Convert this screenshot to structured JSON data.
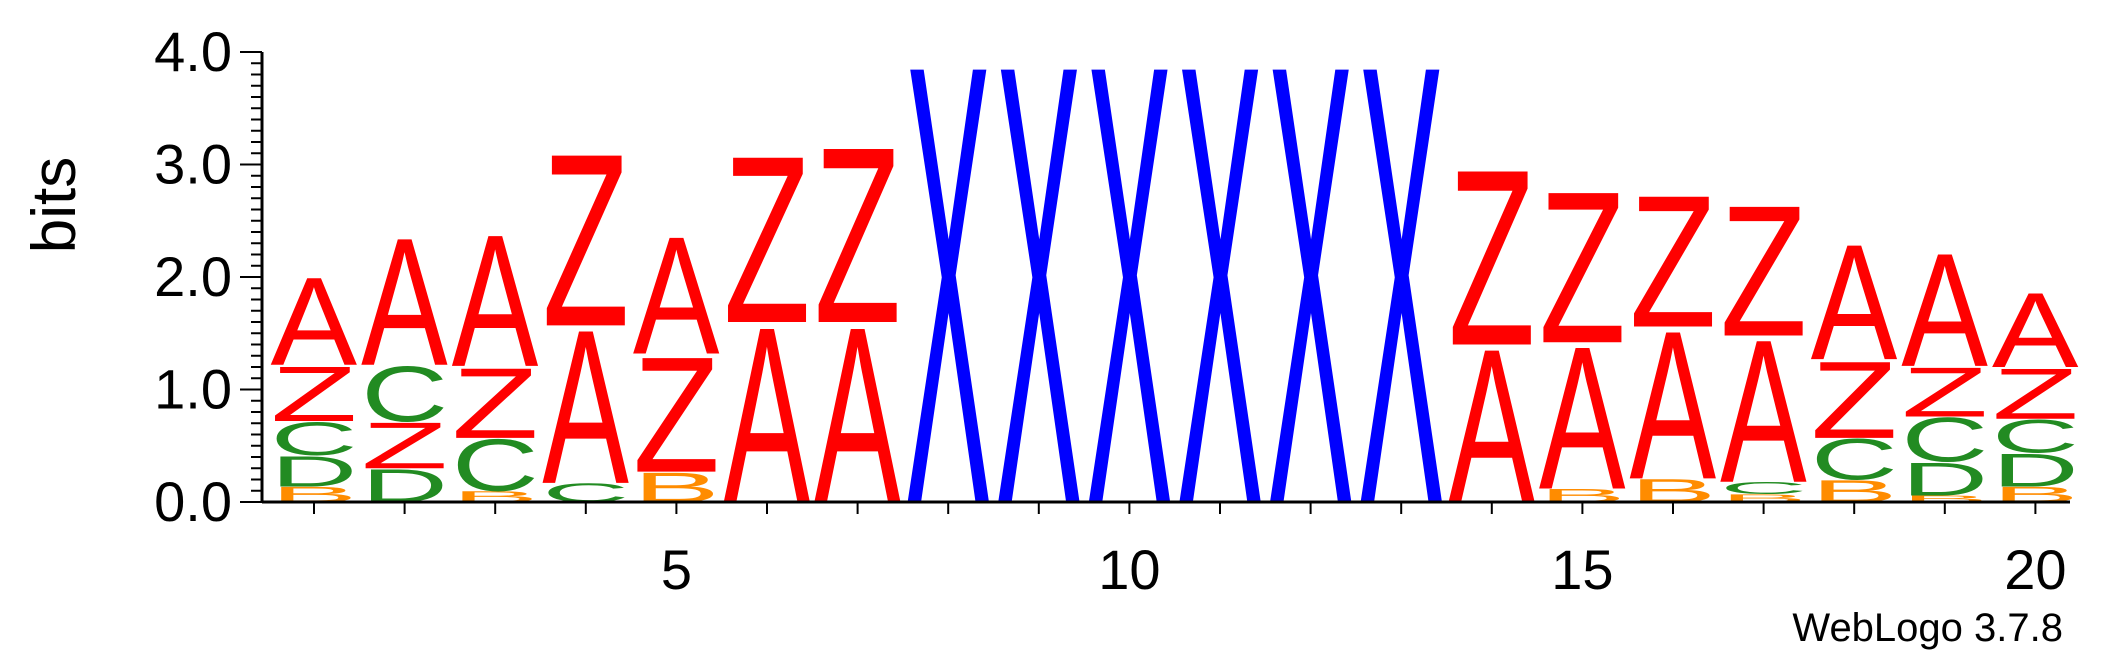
{
  "chart_data": {
    "type": "sequence-logo",
    "ylabel": "bits",
    "ylim": [
      0,
      4
    ],
    "yticks": [
      "0.0",
      "1.0",
      "2.0",
      "3.0",
      "4.0"
    ],
    "positions": [
      1,
      2,
      3,
      4,
      5,
      6,
      7,
      8,
      9,
      10,
      11,
      12,
      13,
      14,
      15,
      16,
      17,
      18,
      19,
      20
    ],
    "xticks": [
      "5",
      "10",
      "15",
      "20"
    ],
    "xtick_positions": [
      5,
      10,
      15,
      20
    ],
    "colors": {
      "A": "#ff0000",
      "Z": "#ff0000",
      "X": "#0000ff",
      "C": "#228b22",
      "D": "#228b22",
      "B": "#ff8c00"
    },
    "stacks": [
      [
        {
          "l": "B",
          "h": 0.14
        },
        {
          "l": "D",
          "h": 0.28
        },
        {
          "l": "C",
          "h": 0.3
        },
        {
          "l": "Z",
          "h": 0.5
        },
        {
          "l": "A",
          "h": 0.8
        }
      ],
      [
        {
          "l": "D",
          "h": 0.3
        },
        {
          "l": "Z",
          "h": 0.42
        },
        {
          "l": "C",
          "h": 0.5
        },
        {
          "l": "A",
          "h": 1.16
        }
      ],
      [
        {
          "l": "B",
          "h": 0.1
        },
        {
          "l": "C",
          "h": 0.47
        },
        {
          "l": "Z",
          "h": 0.64
        },
        {
          "l": "A",
          "h": 1.2
        }
      ],
      [
        {
          "l": "C",
          "h": 0.17
        },
        {
          "l": "A",
          "h": 1.4
        },
        {
          "l": "Z",
          "h": 1.57
        }
      ],
      [
        {
          "l": "B",
          "h": 0.27
        },
        {
          "l": "Z",
          "h": 1.05
        },
        {
          "l": "A",
          "h": 1.07
        }
      ],
      [
        {
          "l": "A",
          "h": 1.6
        },
        {
          "l": "Z",
          "h": 1.52
        }
      ],
      [
        {
          "l": "A",
          "h": 1.6
        },
        {
          "l": "Z",
          "h": 1.6
        }
      ],
      [
        {
          "l": "X",
          "h": 4.0
        }
      ],
      [
        {
          "l": "X",
          "h": 4.0
        }
      ],
      [
        {
          "l": "X",
          "h": 4.0
        }
      ],
      [
        {
          "l": "X",
          "h": 4.0
        }
      ],
      [
        {
          "l": "X",
          "h": 4.0
        }
      ],
      [
        {
          "l": "X",
          "h": 4.0
        }
      ],
      [
        {
          "l": "A",
          "h": 1.4
        },
        {
          "l": "Z",
          "h": 1.6
        }
      ],
      [
        {
          "l": "B",
          "h": 0.12
        },
        {
          "l": "A",
          "h": 1.3
        },
        {
          "l": "Z",
          "h": 1.38
        }
      ],
      [
        {
          "l": "B",
          "h": 0.21
        },
        {
          "l": "A",
          "h": 1.35
        },
        {
          "l": "Z",
          "h": 1.2
        }
      ],
      [
        {
          "l": "B",
          "h": 0.07
        },
        {
          "l": "C",
          "h": 0.11
        },
        {
          "l": "A",
          "h": 1.3
        },
        {
          "l": "Z",
          "h": 1.19
        }
      ],
      [
        {
          "l": "B",
          "h": 0.2
        },
        {
          "l": "C",
          "h": 0.37
        },
        {
          "l": "Z",
          "h": 0.7
        },
        {
          "l": "A",
          "h": 1.05
        }
      ],
      [
        {
          "l": "B",
          "h": 0.06
        },
        {
          "l": "D",
          "h": 0.3
        },
        {
          "l": "C",
          "h": 0.4
        },
        {
          "l": "Z",
          "h": 0.45
        },
        {
          "l": "A",
          "h": 1.03
        }
      ],
      [
        {
          "l": "B",
          "h": 0.14
        },
        {
          "l": "D",
          "h": 0.3
        },
        {
          "l": "C",
          "h": 0.3
        },
        {
          "l": "Z",
          "h": 0.46
        },
        {
          "l": "A",
          "h": 0.68
        }
      ]
    ]
  },
  "credit": "WebLogo 3.7.8"
}
